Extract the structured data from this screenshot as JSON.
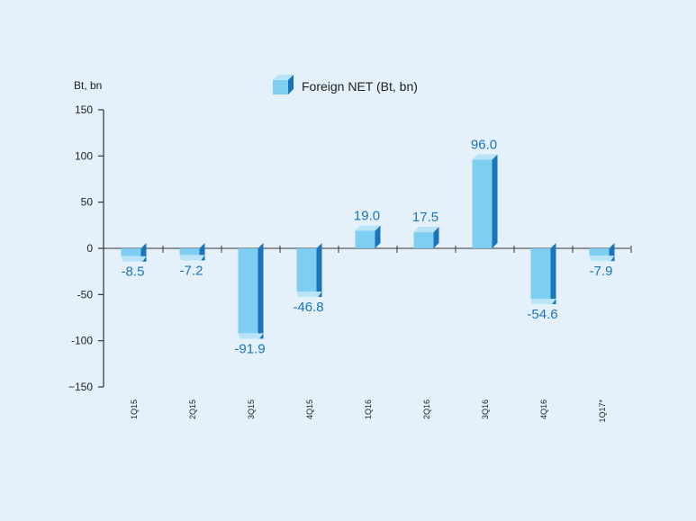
{
  "chart_data": {
    "type": "bar",
    "title": "",
    "ylabel": "Bt, bn",
    "xlabel": "",
    "legend": [
      {
        "label": "Foreign NET (Bt, bn)"
      }
    ],
    "categories": [
      "1Q15",
      "2Q15",
      "3Q15",
      "4Q15",
      "1Q16",
      "2Q16",
      "3Q16",
      "4Q16",
      "1Q17*"
    ],
    "values": [
      -8.5,
      -7.2,
      -91.9,
      -46.8,
      19.0,
      17.5,
      96.0,
      -54.6,
      -7.9
    ],
    "value_labels": [
      "-8.5",
      "-7.2",
      "-91.9",
      "-46.8",
      "19.0",
      "17.5",
      "96.0",
      "-54.6",
      "-7.9"
    ],
    "ylim": [
      -150,
      150
    ],
    "yticks": [
      150,
      100,
      50,
      0,
      -50,
      -100,
      -150
    ],
    "ytick_labels": [
      "150",
      "100",
      "50",
      "0",
      "-50",
      "-100",
      "−150"
    ],
    "grid": false,
    "legend_position": "top-center"
  },
  "colors": {
    "background": "#e4f1fa",
    "bar_front": "#7ecef2",
    "bar_side": "#1a74bb",
    "bar_top": "#b9e3f7",
    "value_label": "#1a74bb",
    "axis": "#333333",
    "text": "#222222"
  }
}
